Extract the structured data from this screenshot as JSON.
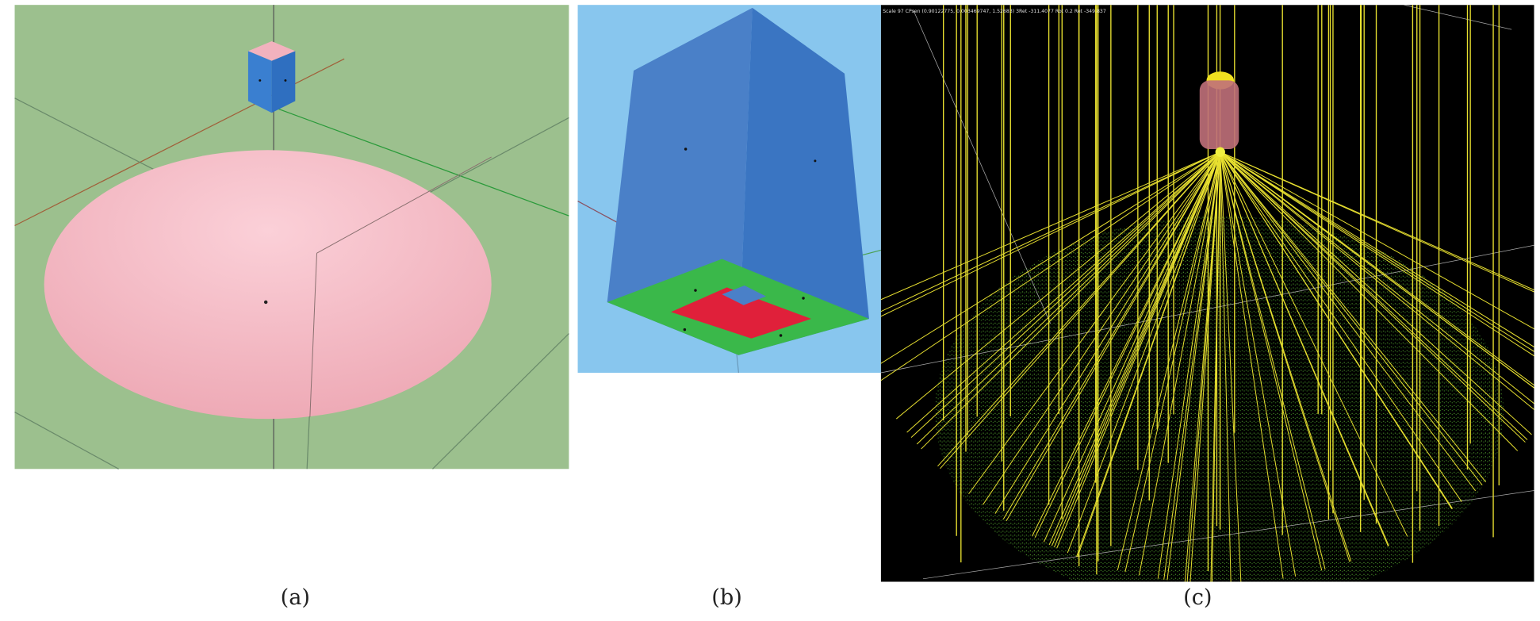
{
  "panels": [
    {
      "caption": "(a)"
    },
    {
      "caption": "(b)"
    },
    {
      "caption": "(c)",
      "header": "Scale 97 CPsen (0.90122775, 0.003469747, 1.52683) 3Ret -311.4077 Rot 0.2 Ret -349.837"
    }
  ]
}
